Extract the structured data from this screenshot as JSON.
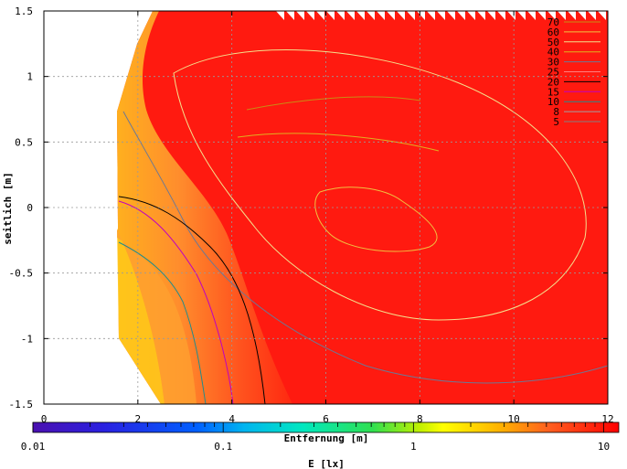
{
  "chart_data": {
    "type": "heatmap",
    "xlabel": "Entfernung [m]",
    "ylabel": "seitlich [m]",
    "xlim": [
      0,
      12
    ],
    "ylim": [
      -1.5,
      1.5
    ],
    "x_ticks": [
      0,
      2,
      4,
      6,
      8,
      10,
      12
    ],
    "y_ticks": [
      -1.5,
      -1,
      -0.5,
      0,
      0.5,
      1,
      1.5
    ],
    "x_tick_labels": [
      "0",
      "2",
      "4",
      "6",
      "8",
      "10",
      "12"
    ],
    "y_tick_labels": [
      "-1.5",
      "-1",
      "-0.5",
      "0",
      "0.5",
      "1",
      "1.5"
    ],
    "grid": true,
    "legend_placement": "top-right",
    "contour_levels": [
      {
        "label": "70",
        "color": "#c88c14"
      },
      {
        "label": "60",
        "color": "#f0c040"
      },
      {
        "label": "50",
        "color": "#f4e08c"
      },
      {
        "label": "40",
        "color": "#e0b020"
      },
      {
        "label": "30",
        "color": "#6c7894"
      },
      {
        "label": "25",
        "color": "#ff8080"
      },
      {
        "label": "20",
        "color": "#000000"
      },
      {
        "label": "15",
        "color": "#c000c0"
      },
      {
        "label": "10",
        "color": "#208c8c"
      },
      {
        "label": "8",
        "color": "#a0a0a0"
      },
      {
        "label": "5",
        "color": "#808080"
      }
    ],
    "colorbar": {
      "label": "E [lx]",
      "scale": "log",
      "range": [
        0.01,
        12
      ],
      "tick_labels": [
        "0.01",
        "0.1",
        "1",
        "10"
      ],
      "tick_values": [
        0.01,
        0.1,
        1,
        10
      ]
    }
  }
}
